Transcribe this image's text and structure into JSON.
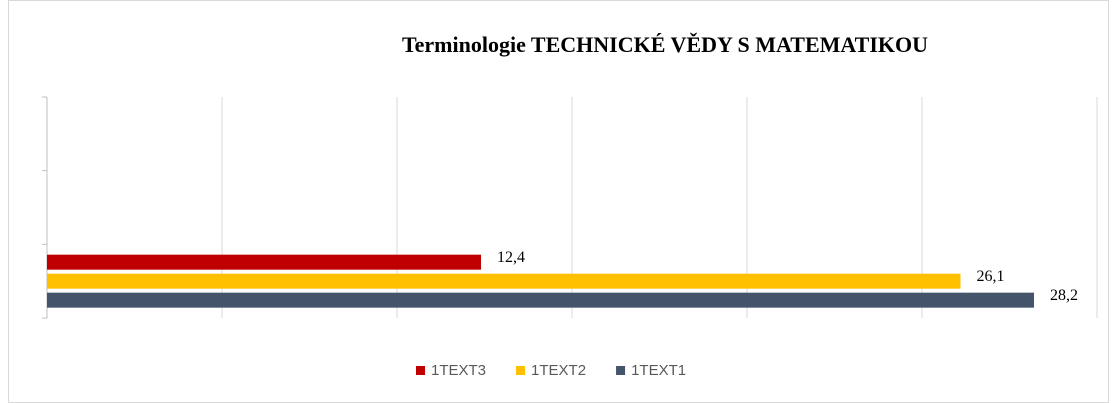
{
  "chart_data": {
    "type": "bar",
    "orientation": "horizontal",
    "title": "Terminologie TECHNICKÉ VĚDY S MATEMATIKOU",
    "categories": [
      null,
      null,
      null
    ],
    "series": [
      {
        "name": "1TEXT3",
        "color": "#c00000",
        "values": [
          12.4,
          null,
          null
        ],
        "value_labels": [
          "12,4",
          null,
          null
        ]
      },
      {
        "name": "1TEXT2",
        "color": "#ffc000",
        "values": [
          26.1,
          null,
          null
        ],
        "value_labels": [
          "26,1",
          null,
          null
        ]
      },
      {
        "name": "1TEXT1",
        "color": "#44546a",
        "values": [
          28.2,
          null,
          null
        ],
        "value_labels": [
          "28,2",
          null,
          null
        ]
      }
    ],
    "xlim": [
      0,
      30
    ],
    "xticks": [
      0,
      5,
      10,
      15,
      20,
      25,
      30
    ],
    "grid": true,
    "legend": "bottom"
  }
}
